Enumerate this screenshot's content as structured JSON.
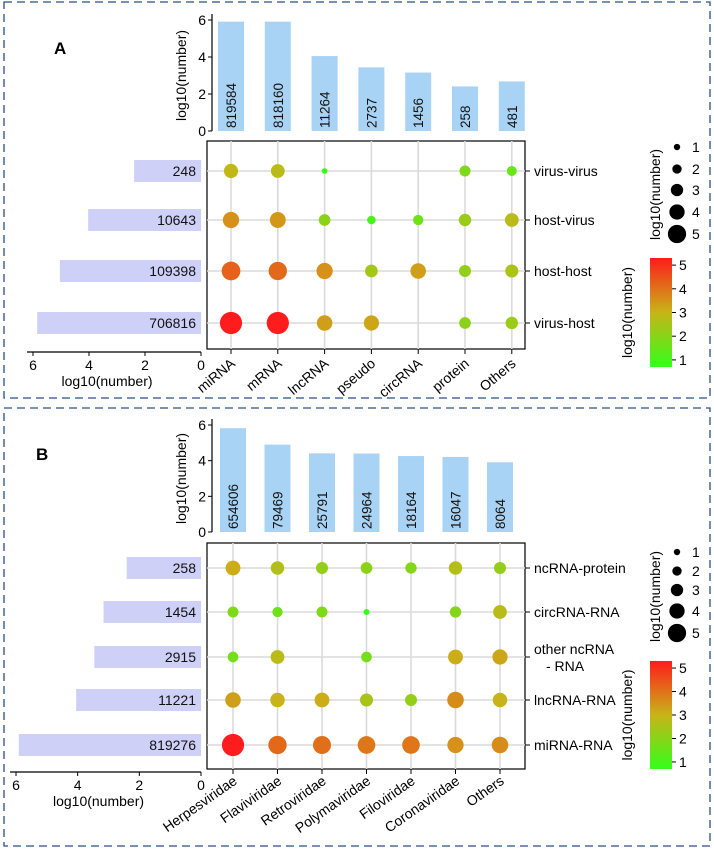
{
  "panels": [
    {
      "label": "A",
      "top_ylabel": "log10(number)",
      "left_xlabel": "log10(number)",
      "size_legend_title": "log10(number)",
      "color_legend_title": "log10(number)",
      "top_ticks": [
        "0",
        "2",
        "4",
        "6"
      ],
      "left_ticks": [
        "6",
        "4",
        "2",
        "0"
      ],
      "size_legend": [
        "1",
        "2",
        "3",
        "4",
        "5"
      ],
      "color_ticks": [
        "1",
        "2",
        "3",
        "4",
        "5"
      ]
    },
    {
      "label": "B",
      "top_ylabel": "log10(number)",
      "left_xlabel": "log10(number)",
      "size_legend_title": "log10(number)",
      "color_legend_title": "log10(number)",
      "top_ticks": [
        "0",
        "2",
        "4",
        "6"
      ],
      "left_ticks": [
        "6",
        "4",
        "2",
        "0"
      ],
      "size_legend": [
        "1",
        "2",
        "3",
        "4",
        "5"
      ],
      "color_ticks": [
        "1",
        "2",
        "3",
        "4",
        "5"
      ]
    }
  ],
  "colors": {
    "top_bar": "#a9d3f5",
    "left_bar": "#cfd0f7",
    "frame": "#2b4f82",
    "color_low": "#33ff1a",
    "color_mid": "#c8b418",
    "color_high": "#ff1c1c"
  },
  "chart_data": [
    {
      "type": "bubble-upset",
      "columns": [
        "miRNA",
        "mRNA",
        "lncRNA",
        "pseudo",
        "circRNA",
        "protein",
        "Others"
      ],
      "column_totals": [
        819584,
        818160,
        11264,
        2737,
        1456,
        258,
        481
      ],
      "column_log10": [
        5.91,
        5.91,
        4.05,
        3.44,
        3.16,
        2.41,
        2.68
      ],
      "rows": [
        "virus-virus",
        "host-virus",
        "host-host",
        "virus-host"
      ],
      "row_totals": [
        248,
        10643,
        109398,
        706816
      ],
      "row_log10": [
        2.39,
        4.03,
        5.04,
        5.85
      ],
      "ylim": [
        0,
        6
      ],
      "cells_log10": [
        [
          2.9,
          2.8,
          0.5,
          null,
          null,
          2.0,
          1.7
        ],
        [
          3.5,
          3.4,
          2.2,
          1.3,
          1.8,
          2.4,
          2.8
        ],
        [
          4.2,
          4.1,
          3.5,
          2.5,
          3.3,
          2.3,
          2.6
        ],
        [
          5.2,
          5.2,
          3.3,
          3.2,
          null,
          2.2,
          2.4
        ]
      ]
    },
    {
      "type": "bubble-upset",
      "columns": [
        "Herpesviridae",
        "Flaviviridae",
        "Retroviridae",
        "Polymaviridae",
        "Filoviridae",
        "Coronaviridae",
        "Others"
      ],
      "column_totals": [
        654606,
        79469,
        25791,
        24964,
        18164,
        16047,
        8064
      ],
      "column_log10": [
        5.82,
        4.9,
        4.41,
        4.4,
        4.26,
        4.21,
        3.91
      ],
      "rows": [
        "ncRNA-protein",
        "circRNA-RNA",
        "other ncRNA\n- RNA",
        "lncRNA-RNA",
        "miRNA-RNA"
      ],
      "row_totals": [
        258,
        1454,
        2915,
        11221,
        819276
      ],
      "row_log10": [
        2.41,
        3.16,
        3.46,
        4.05,
        5.91
      ],
      "ylim": [
        0,
        6
      ],
      "cells_log10": [
        [
          3.1,
          2.7,
          2.3,
          2.2,
          2.1,
          2.7,
          2.3
        ],
        [
          2.0,
          1.8,
          2.0,
          0.6,
          null,
          2.1,
          2.8
        ],
        [
          1.9,
          2.8,
          null,
          1.9,
          null,
          3.1,
          3.2
        ],
        [
          3.3,
          3.0,
          3.1,
          2.6,
          2.3,
          3.6,
          3.0
        ],
        [
          5.2,
          4.1,
          4.0,
          3.9,
          3.9,
          3.5,
          3.6
        ]
      ]
    }
  ]
}
